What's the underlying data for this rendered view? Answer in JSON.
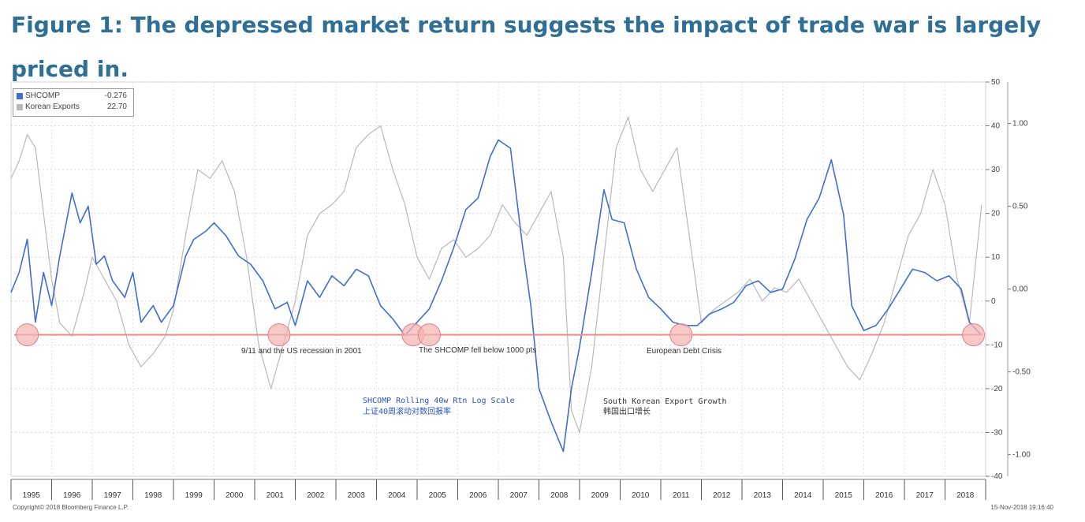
{
  "figure_title": "Figure 1: The depressed market return suggests the impact of trade war is largely priced in.",
  "footer": {
    "copyright": "Copyright© 2018 Bloomberg Finance L.P.",
    "timestamp": "15-Nov-2018 19:16:40"
  },
  "colors": {
    "shcomp": "#3f6fce",
    "korean_exports": "#b9b9b9",
    "threshold": "#f08a8a",
    "crisis_marker": "#f3b6b6"
  },
  "chart_data": {
    "type": "line",
    "x_range": [
      1995.0,
      2019.0
    ],
    "categories": [
      "1995",
      "1996",
      "1997",
      "1998",
      "1999",
      "2000",
      "2001",
      "2002",
      "2003",
      "2004",
      "2005",
      "2006",
      "2007",
      "2008",
      "2009",
      "2010",
      "2011",
      "2012",
      "2013",
      "2014",
      "2015",
      "2016",
      "2017",
      "2018"
    ],
    "left_axis": {
      "ticks": [
        "50",
        "40",
        "30",
        "20",
        "10",
        "0",
        "-10",
        "-20",
        "-30",
        "-40"
      ],
      "range": [
        -40,
        50
      ]
    },
    "right_axis": {
      "ticks": [
        "1.00",
        "0.50",
        "0.00",
        "-0.50",
        "-1.00"
      ],
      "range": [
        -1.13,
        1.25
      ]
    },
    "legend": [
      {
        "name": "SHCOMP",
        "value": "-0.276",
        "series": "shcomp"
      },
      {
        "name": "Korean Exports",
        "value": "22.70",
        "series": "korean_exports"
      }
    ],
    "series": [
      {
        "name": "SHCOMP",
        "axis": "right",
        "x": [
          1995.0,
          1995.2,
          1995.4,
          1995.6,
          1995.8,
          1996.0,
          1996.2,
          1996.5,
          1996.7,
          1996.9,
          1997.1,
          1997.3,
          1997.5,
          1997.8,
          1998.0,
          1998.2,
          1998.5,
          1998.7,
          1999.0,
          1999.3,
          1999.5,
          1999.8,
          2000.0,
          2000.3,
          2000.6,
          2000.9,
          2001.2,
          2001.5,
          2001.8,
          2002.0,
          2002.3,
          2002.6,
          2002.9,
          2003.2,
          2003.5,
          2003.8,
          2004.1,
          2004.4,
          2004.7,
          2005.0,
          2005.3,
          2005.6,
          2005.9,
          2006.2,
          2006.5,
          2006.8,
          2007.0,
          2007.3,
          2007.6,
          2007.8,
          2008.0,
          2008.3,
          2008.6,
          2008.8,
          2009.0,
          2009.3,
          2009.6,
          2009.8,
          2010.1,
          2010.4,
          2010.7,
          2011.0,
          2011.3,
          2011.6,
          2011.9,
          2012.2,
          2012.5,
          2012.8,
          2013.1,
          2013.4,
          2013.7,
          2014.0,
          2014.3,
          2014.6,
          2014.9,
          2015.2,
          2015.5,
          2015.7,
          2016.0,
          2016.3,
          2016.6,
          2016.9,
          2017.2,
          2017.5,
          2017.8,
          2018.1,
          2018.4,
          2018.6,
          2018.9
        ],
        "values": [
          -0.02,
          0.1,
          0.3,
          -0.2,
          0.1,
          -0.1,
          0.2,
          0.58,
          0.4,
          0.5,
          0.15,
          0.2,
          0.05,
          -0.05,
          0.1,
          -0.2,
          -0.1,
          -0.2,
          -0.1,
          0.2,
          0.3,
          0.35,
          0.4,
          0.32,
          0.2,
          0.15,
          0.05,
          -0.12,
          -0.08,
          -0.22,
          0.05,
          -0.05,
          0.08,
          0.02,
          0.12,
          0.08,
          -0.1,
          -0.18,
          -0.28,
          -0.2,
          -0.12,
          0.05,
          0.25,
          0.48,
          0.55,
          0.8,
          0.9,
          0.85,
          0.25,
          -0.1,
          -0.6,
          -0.8,
          -0.98,
          -0.6,
          -0.35,
          0.1,
          0.6,
          0.42,
          0.4,
          0.12,
          -0.05,
          -0.12,
          -0.2,
          -0.22,
          -0.22,
          -0.15,
          -0.12,
          -0.08,
          0.02,
          0.05,
          -0.02,
          0.0,
          0.18,
          0.42,
          0.55,
          0.78,
          0.45,
          -0.1,
          -0.25,
          -0.22,
          -0.12,
          0.0,
          0.12,
          0.1,
          0.05,
          0.08,
          0.0,
          -0.2,
          -0.28
        ]
      },
      {
        "name": "Korean Exports",
        "axis": "left",
        "x": [
          1995.0,
          1995.2,
          1995.4,
          1995.6,
          1995.8,
          1996.0,
          1996.2,
          1996.5,
          1996.8,
          1997.0,
          1997.3,
          1997.6,
          1997.9,
          1998.2,
          1998.5,
          1998.8,
          1999.0,
          1999.3,
          1999.6,
          1999.9,
          2000.2,
          2000.5,
          2000.8,
          2001.1,
          2001.4,
          2001.7,
          2002.0,
          2002.3,
          2002.6,
          2002.9,
          2003.2,
          2003.5,
          2003.8,
          2004.1,
          2004.4,
          2004.7,
          2005.0,
          2005.3,
          2005.6,
          2005.9,
          2006.2,
          2006.5,
          2006.8,
          2007.1,
          2007.4,
          2007.7,
          2008.0,
          2008.3,
          2008.6,
          2008.8,
          2009.0,
          2009.3,
          2009.6,
          2009.9,
          2010.2,
          2010.5,
          2010.8,
          2011.1,
          2011.4,
          2011.7,
          2012.0,
          2012.3,
          2012.6,
          2012.9,
          2013.2,
          2013.5,
          2013.8,
          2014.1,
          2014.4,
          2014.7,
          2015.0,
          2015.3,
          2015.6,
          2015.9,
          2016.2,
          2016.5,
          2016.8,
          2017.1,
          2017.4,
          2017.7,
          2018.0,
          2018.3,
          2018.6,
          2018.9
        ],
        "values": [
          28,
          32,
          38,
          35,
          20,
          5,
          -5,
          -8,
          2,
          10,
          5,
          0,
          -10,
          -15,
          -12,
          -8,
          -2,
          15,
          30,
          28,
          32,
          25,
          10,
          -10,
          -20,
          -10,
          0,
          15,
          20,
          22,
          25,
          35,
          38,
          40,
          30,
          22,
          10,
          5,
          12,
          14,
          10,
          12,
          15,
          22,
          18,
          15,
          20,
          25,
          10,
          -25,
          -30,
          -15,
          10,
          35,
          42,
          30,
          25,
          30,
          35,
          15,
          -5,
          -2,
          0,
          2,
          5,
          0,
          3,
          2,
          5,
          0,
          -5,
          -10,
          -15,
          -18,
          -12,
          -5,
          5,
          15,
          20,
          30,
          22,
          5,
          -5,
          22
        ]
      }
    ],
    "threshold": {
      "value": -0.276,
      "axis": "right"
    },
    "crisis_markers": [
      1995.4,
      2001.6,
      2004.9,
      2005.3,
      2011.5,
      2018.7
    ],
    "annotations": {
      "recession": "9/11 and the US recession in 2001",
      "below1000": "The SHCOMP fell below 1000 pts",
      "euro": "European Debt Crisis",
      "shcomp_line1": "SHCOMP Rolling 40w Rtn Log Scale",
      "shcomp_line2": "上证40周滚动对数回报率",
      "kr_line1": "South Korean Export Growth",
      "kr_line2": "韩国出口增长"
    }
  }
}
